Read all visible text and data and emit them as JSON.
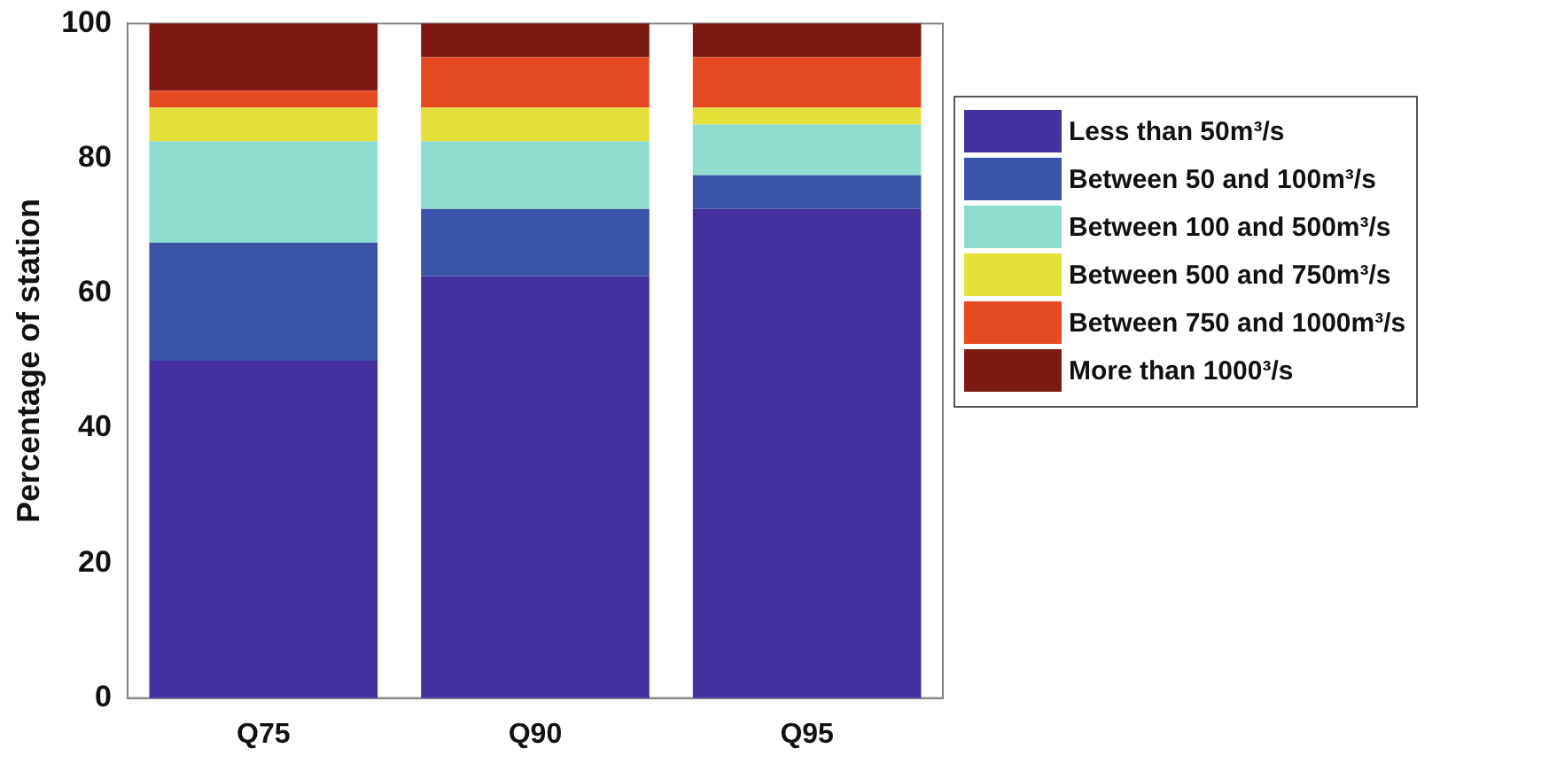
{
  "chart_data": {
    "type": "bar",
    "stacked": true,
    "ylabel": "Percentage of station",
    "categories": [
      "Q75",
      "Q90",
      "Q95"
    ],
    "series": [
      {
        "name": "Less than 50m³/s",
        "color": "#4530a0",
        "values": [
          50,
          62.5,
          72.5
        ]
      },
      {
        "name": "Between 50 and 100m³/s",
        "color": "#3a53a8",
        "values": [
          17.5,
          10,
          5
        ]
      },
      {
        "name": "Between 100 and 500m³/s",
        "color": "#8edccd",
        "values": [
          15,
          10,
          7.5
        ]
      },
      {
        "name": "Between 500 and 750m³/s",
        "color": "#e3e13a",
        "values": [
          5,
          5,
          2.5
        ]
      },
      {
        "name": "Between 750 and 1000m³/s",
        "color": "#e64a22",
        "values": [
          2.5,
          7.5,
          7.5
        ]
      },
      {
        "name": "More than 1000³/s",
        "color": "#7e1a14",
        "values": [
          10,
          5,
          5
        ]
      }
    ],
    "ylim": [
      0,
      100
    ],
    "yticks": [
      0,
      20,
      40,
      60,
      80,
      100
    ],
    "grid": false,
    "legend": "right"
  }
}
